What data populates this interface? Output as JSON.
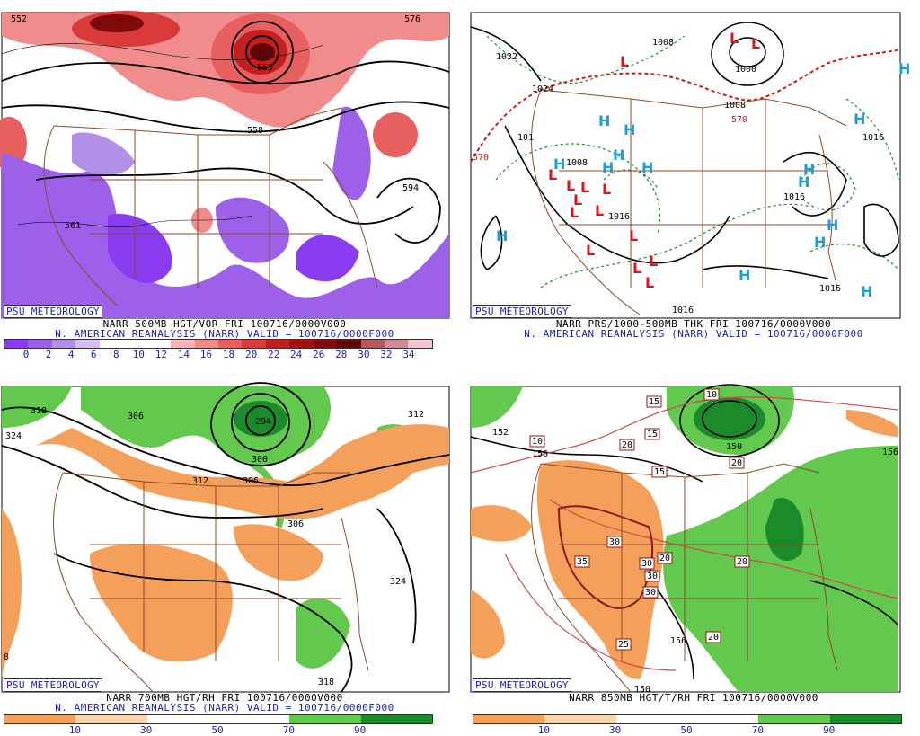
{
  "badge": "PSU METEOROLOGY",
  "panels": {
    "vort500": {
      "caption1": "NARR 500MB HGT/VOR FRI 100716/0000V000",
      "caption2": "N. AMERICAN REANALYSIS (NARR) VALID = 100716/0000F000",
      "colorbar_ticks": [
        "0",
        "2",
        "4",
        "6",
        "8",
        "10",
        "12",
        "14",
        "16",
        "18",
        "20",
        "22",
        "24",
        "26",
        "28",
        "30",
        "32",
        "34"
      ],
      "colorbar_colors": [
        "#8a3df0",
        "#9d60e8",
        "#b48fe6",
        "#d2bff0",
        "#ffffff",
        "#ffffff",
        "#ffffff",
        "#f6b3b3",
        "#f08c8c",
        "#e85f5f",
        "#d93b3b",
        "#c21f1f",
        "#a31010",
        "#7e0a0a",
        "#5e0606",
        "#b2595e",
        "#d08a96",
        "#f2c3cf"
      ],
      "contour_labels": [
        "552",
        "576",
        "555",
        "558",
        "594",
        "561"
      ],
      "marker_label": "N"
    },
    "mslp": {
      "caption1": "NARR PRS/1000-500MB THK FRI 100716/0000V000",
      "caption2": "N. AMERICAN REANALYSIS (NARR) VALID = 100716/0000F000",
      "high_symbol": "H",
      "low_symbol": "L",
      "contour_labels": [
        "1032",
        "1024",
        "1008",
        "1000",
        "1008",
        "1016",
        "1016",
        "1016",
        "1016",
        "1016",
        "1008",
        "101",
        "570",
        "570"
      ]
    },
    "rh700": {
      "caption1": "NARR 700MB HGT/RH FRI 100716/0000V000",
      "caption2": "N. AMERICAN REANALYSIS (NARR) VALID = 100716/0000F000",
      "colorbar_ticks": [
        "10",
        "30",
        "50",
        "70",
        "90"
      ],
      "colorbar_colors": [
        "#f4a05a",
        "#fbd3ad",
        "#ffffff",
        "#ffffff",
        "#62c94e",
        "#1a8a2a"
      ],
      "contour_labels": [
        "318",
        "324",
        "306",
        "294",
        "300",
        "312",
        "306",
        "312",
        "306",
        "324",
        "318",
        "8"
      ]
    },
    "t850": {
      "caption1": "NARR 850MB HGT/T/RH FRI 100716/0000V000",
      "colorbar_ticks": [
        "10",
        "30",
        "50",
        "70",
        "90"
      ],
      "colorbar_colors": [
        "#f4a05a",
        "#fbd3ad",
        "#ffffff",
        "#ffffff",
        "#62c94e",
        "#1a8a2a"
      ],
      "contour_labels": [
        "152",
        "156",
        "150",
        "156",
        "156",
        "150"
      ],
      "temp_labels": [
        "10",
        "10",
        "15",
        "15",
        "15",
        "20",
        "20",
        "20",
        "20",
        "20",
        "25",
        "30",
        "30",
        "30",
        "30",
        "35"
      ]
    }
  },
  "colors": {
    "blue_text": "#1d1fa8",
    "border": "#8b4a2b",
    "contour": "#000000",
    "high": "#19a0d8",
    "low": "#e0121b",
    "thickness": "#cc1a1a",
    "isobar_dashed": "#1a8a2a"
  }
}
